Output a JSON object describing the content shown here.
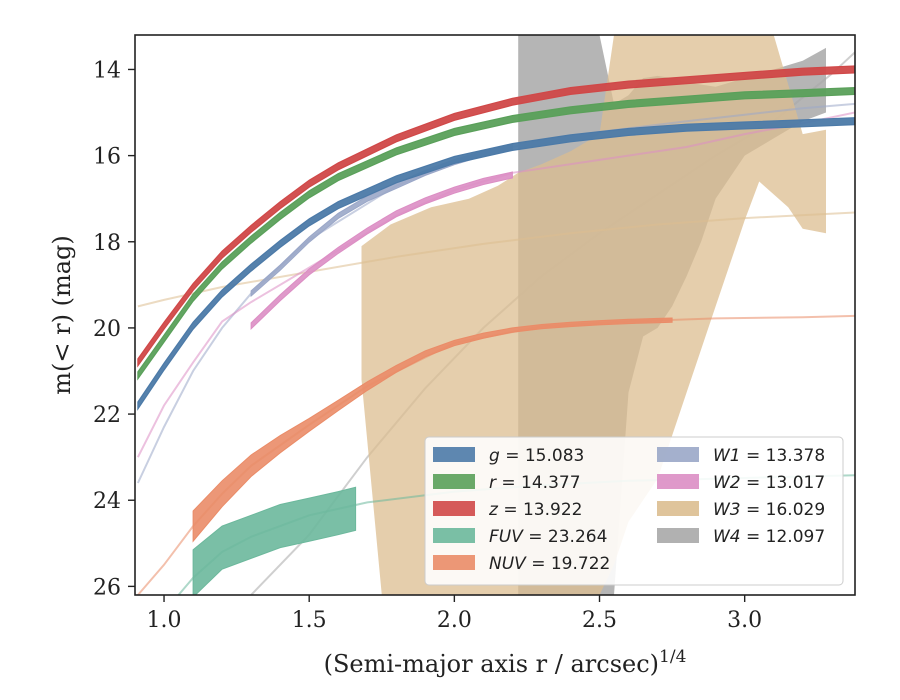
{
  "chart_data": {
    "type": "line",
    "xlabel": "(Semi-major axis r / arcsec)",
    "xlabel_sup": "1/4",
    "ylabel": "m(< r) (mag)",
    "xlim": [
      0.9,
      3.38
    ],
    "ylim": [
      26.2,
      13.2
    ],
    "y_inverted": true,
    "x_ticks": [
      "1.0",
      "1.5",
      "2.0",
      "2.5",
      "3.0"
    ],
    "x_tick_values": [
      1.0,
      1.5,
      2.0,
      2.5,
      3.0
    ],
    "y_ticks": [
      "14",
      "16",
      "18",
      "20",
      "22",
      "24",
      "26"
    ],
    "y_tick_values": [
      14,
      16,
      18,
      20,
      22,
      24,
      26
    ],
    "grid": false,
    "legend_position": "lower-right",
    "series": [
      {
        "label": "g = 15.083",
        "letter": "g",
        "value": "15.083",
        "color": "#4c7aa8",
        "style": "band",
        "x": [
          0.91,
          1.0,
          1.1,
          1.2,
          1.3,
          1.4,
          1.5,
          1.6,
          1.8,
          2.0,
          2.2,
          2.4,
          2.6,
          2.8,
          3.0,
          3.2,
          3.38
        ],
        "y": [
          21.8,
          20.9,
          19.95,
          19.2,
          18.6,
          18.05,
          17.55,
          17.15,
          16.55,
          16.1,
          15.8,
          15.6,
          15.45,
          15.35,
          15.3,
          15.25,
          15.2
        ],
        "half_width": 0.08
      },
      {
        "label": "r = 14.377",
        "letter": "r",
        "value": "14.377",
        "color": "#5aa05a",
        "style": "band",
        "x": [
          0.91,
          1.0,
          1.1,
          1.2,
          1.3,
          1.4,
          1.5,
          1.6,
          1.8,
          2.0,
          2.2,
          2.4,
          2.6,
          2.8,
          3.0,
          3.2,
          3.38
        ],
        "y": [
          21.1,
          20.25,
          19.3,
          18.55,
          17.95,
          17.4,
          16.9,
          16.5,
          15.9,
          15.45,
          15.15,
          14.95,
          14.8,
          14.7,
          14.6,
          14.55,
          14.5
        ],
        "half_width": 0.08
      },
      {
        "label": "z = 13.922",
        "letter": "z",
        "value": "13.922",
        "color": "#d04848",
        "style": "band",
        "x": [
          0.91,
          1.0,
          1.1,
          1.2,
          1.3,
          1.4,
          1.5,
          1.6,
          1.8,
          2.0,
          2.2,
          2.4,
          2.6,
          2.8,
          3.0,
          3.2,
          3.38
        ],
        "y": [
          20.8,
          19.95,
          19.05,
          18.3,
          17.7,
          17.15,
          16.65,
          16.25,
          15.6,
          15.1,
          14.75,
          14.5,
          14.35,
          14.25,
          14.15,
          14.05,
          14.0
        ],
        "half_width": 0.08
      },
      {
        "label": "FUV = 23.264",
        "letter": "FUV",
        "value": "23.264",
        "color": "#6cb89c",
        "style": "band-with-line",
        "band": {
          "x": [
            1.1,
            1.2,
            1.3,
            1.4,
            1.5,
            1.6,
            1.66
          ],
          "y": [
            25.7,
            25.1,
            24.85,
            24.6,
            24.45,
            24.3,
            24.2
          ],
          "half_width": [
            0.55,
            0.5,
            0.5,
            0.5,
            0.5,
            0.5,
            0.5
          ]
        },
        "line": {
          "x": [
            1.05,
            1.1,
            1.2,
            1.3,
            1.5,
            1.7,
            2.0,
            2.3,
            2.6,
            2.9,
            3.2,
            3.38
          ],
          "y": [
            26.2,
            25.8,
            25.2,
            24.85,
            24.35,
            24.05,
            23.8,
            23.65,
            23.55,
            23.5,
            23.45,
            23.42
          ]
        }
      },
      {
        "label": "NUV = 19.722",
        "letter": "NUV",
        "value": "19.722",
        "color": "#ea8c68",
        "style": "band-with-line",
        "band": {
          "x": [
            1.1,
            1.2,
            1.3,
            1.4,
            1.5,
            1.6,
            1.7,
            1.8,
            1.9,
            2.0,
            2.1,
            2.2,
            2.3,
            2.4,
            2.5,
            2.6,
            2.7,
            2.75
          ],
          "y": [
            24.6,
            23.85,
            23.2,
            22.7,
            22.25,
            21.8,
            21.35,
            20.95,
            20.6,
            20.35,
            20.18,
            20.05,
            19.97,
            19.92,
            19.88,
            19.85,
            19.83,
            19.82
          ],
          "half_width": [
            0.35,
            0.3,
            0.25,
            0.2,
            0.15,
            0.12,
            0.1,
            0.08,
            0.07,
            0.06,
            0.06,
            0.05,
            0.05,
            0.05,
            0.05,
            0.05,
            0.05,
            0.05
          ]
        },
        "line": {
          "x": [
            0.91,
            1.0,
            1.1,
            1.2,
            1.3,
            1.5,
            1.7,
            2.0,
            2.3,
            2.6,
            2.9,
            3.2,
            3.38
          ],
          "y": [
            26.2,
            25.5,
            24.6,
            23.85,
            23.2,
            22.25,
            21.35,
            20.35,
            19.97,
            19.85,
            19.78,
            19.75,
            19.72
          ]
        }
      },
      {
        "label": "W1 = 13.378",
        "letter": "W1",
        "value": "13.378",
        "color": "#9aa7c8",
        "style": "band-with-line",
        "band": {
          "x": [
            1.3,
            1.4,
            1.5,
            1.6,
            1.7,
            1.8,
            1.9,
            2.0,
            2.1,
            2.2
          ],
          "y": [
            19.2,
            18.6,
            17.95,
            17.4,
            17.0,
            16.7,
            16.4,
            16.15,
            15.95,
            15.8
          ],
          "half_width": 0.06
        },
        "line": {
          "x": [
            0.91,
            1.0,
            1.1,
            1.2,
            1.3,
            1.5,
            1.8,
            2.0,
            2.2,
            2.5,
            2.8,
            3.0,
            3.2,
            3.38
          ],
          "y": [
            23.6,
            22.3,
            21.0,
            20.0,
            19.2,
            17.95,
            16.7,
            16.15,
            15.8,
            15.45,
            15.2,
            15.05,
            14.9,
            14.8
          ]
        }
      },
      {
        "label": "W2 = 13.017",
        "letter": "W2",
        "value": "13.017",
        "color": "#dc8ec4",
        "style": "band-with-line",
        "band": {
          "x": [
            1.3,
            1.4,
            1.5,
            1.6,
            1.7,
            1.8,
            1.9,
            2.0,
            2.1,
            2.2
          ],
          "y": [
            19.95,
            19.3,
            18.7,
            18.2,
            17.75,
            17.35,
            17.05,
            16.8,
            16.6,
            16.45
          ],
          "half_width": 0.07
        },
        "line": {
          "x": [
            0.91,
            1.0,
            1.1,
            1.2,
            1.3,
            1.5,
            1.8,
            2.0,
            2.2,
            2.5,
            2.8,
            3.0,
            3.2,
            3.38
          ],
          "y": [
            23.0,
            21.8,
            20.8,
            19.85,
            19.4,
            18.6,
            17.4,
            16.8,
            16.4,
            16.1,
            15.8,
            15.5,
            15.25,
            15.0
          ]
        }
      },
      {
        "label": "W3 = 16.029",
        "letter": "W3",
        "value": "16.029",
        "color": "#dcbe90",
        "style": "band-with-line",
        "band": {
          "polygon_x": [
            1.68,
            1.78,
            1.92,
            2.05,
            2.15,
            2.22,
            2.3,
            2.4,
            2.5,
            2.55,
            2.6,
            2.65,
            2.75,
            2.8,
            2.9,
            2.95,
            3.0,
            3.05,
            3.1,
            3.2,
            3.28,
            3.28,
            3.2,
            3.15,
            3.1,
            3.05,
            3.0,
            2.95,
            2.9,
            2.85,
            2.8,
            2.75,
            2.7,
            2.6,
            2.55,
            2.5,
            2.4,
            2.3,
            2.2,
            2.0,
            1.85,
            1.75,
            1.68
          ],
          "polygon_y": [
            18.1,
            17.6,
            17.2,
            17.0,
            16.7,
            16.4,
            16.2,
            15.9,
            15.5,
            13.2,
            13.2,
            13.2,
            13.2,
            13.2,
            13.2,
            13.2,
            13.2,
            13.2,
            13.2,
            15.5,
            15.4,
            17.8,
            17.7,
            17.2,
            16.9,
            16.6,
            17.5,
            18.5,
            19.5,
            20.5,
            21.5,
            22.5,
            23.5,
            24.5,
            25.5,
            26.2,
            26.2,
            26.2,
            26.2,
            26.2,
            26.2,
            26.2,
            21.2
          ],
          "note": "band envelope"
        },
        "line": {
          "x": [
            0.91,
            1.0,
            1.2,
            1.5,
            1.8,
            2.1,
            2.4,
            2.7,
            3.0,
            3.38
          ],
          "y": [
            19.5,
            19.35,
            19.05,
            18.7,
            18.35,
            18.05,
            17.8,
            17.6,
            17.45,
            17.32
          ]
        }
      },
      {
        "label": "W4 = 12.097",
        "letter": "W4",
        "value": "12.097",
        "color": "#a8a8a8",
        "style": "band-with-line",
        "band": {
          "polygon_x": [
            2.22,
            2.5,
            2.55,
            2.6,
            2.65,
            2.7,
            2.75,
            2.8,
            2.9,
            3.0,
            3.1,
            3.2,
            3.28,
            3.28,
            3.2,
            3.1,
            3.0,
            2.9,
            2.85,
            2.8,
            2.75,
            2.7,
            2.65,
            2.6,
            2.55,
            2.5,
            2.22
          ],
          "polygon_y": [
            13.2,
            13.2,
            14.8,
            14.6,
            14.2,
            14.15,
            14.2,
            14.3,
            14.4,
            14.2,
            14.0,
            13.8,
            13.5,
            15.0,
            15.2,
            15.6,
            16.0,
            17.0,
            18.0,
            18.8,
            19.5,
            20.0,
            20.2,
            21.5,
            26.2,
            26.2,
            26.2
          ]
        },
        "line": {
          "x": [
            1.3,
            1.5,
            1.7,
            1.9,
            2.1,
            2.3,
            2.5,
            2.7,
            2.9,
            3.1,
            3.3,
            3.38
          ],
          "y": [
            26.2,
            24.8,
            23.0,
            21.4,
            20.0,
            18.8,
            17.8,
            16.9,
            16.0,
            15.2,
            14.1,
            13.6
          ]
        }
      }
    ]
  }
}
